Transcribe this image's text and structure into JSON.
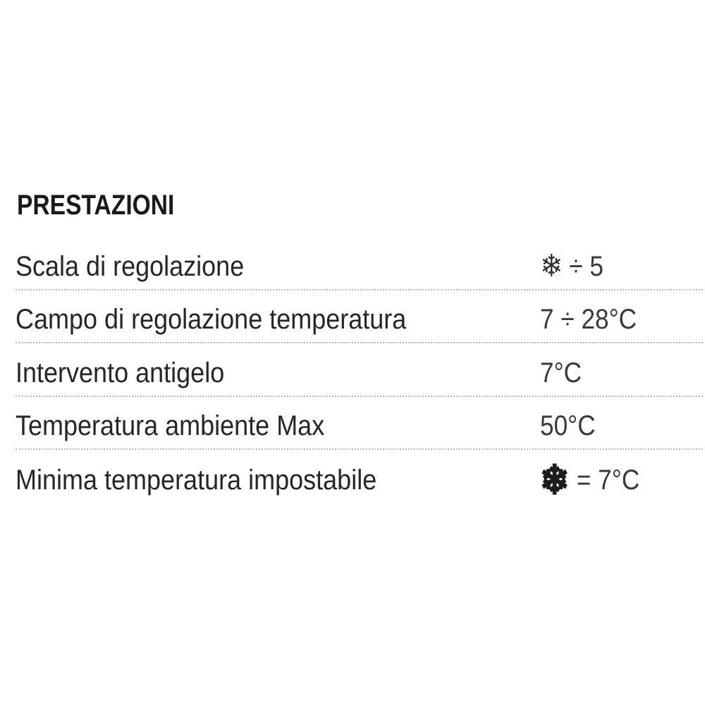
{
  "section": {
    "title": "PRESTAZIONI"
  },
  "colors": {
    "background": "#ffffff",
    "title_text": "#1a1a1a",
    "label_text": "#262626",
    "value_text": "#3a3a3a",
    "divider": "#b9b9b9"
  },
  "icons": {
    "snowflake_glyph": "❄",
    "snowflake_name": "snowflake-icon"
  },
  "table": {
    "rows": [
      {
        "label": "Scala di regolazione",
        "icon": "snowflake-icon",
        "icon_glyph": "❄",
        "value": "÷ 5"
      },
      {
        "label": "Campo di regolazione temperatura",
        "value": "7 ÷ 28°C"
      },
      {
        "label": "Intervento antigelo",
        "value": "7°C"
      },
      {
        "label": "Temperatura ambiente Max",
        "value": "50°C"
      },
      {
        "label": "Minima temperatura impostabile",
        "icon": "snowflake-icon",
        "icon_glyph": "❄",
        "value": "= 7°C"
      }
    ]
  }
}
